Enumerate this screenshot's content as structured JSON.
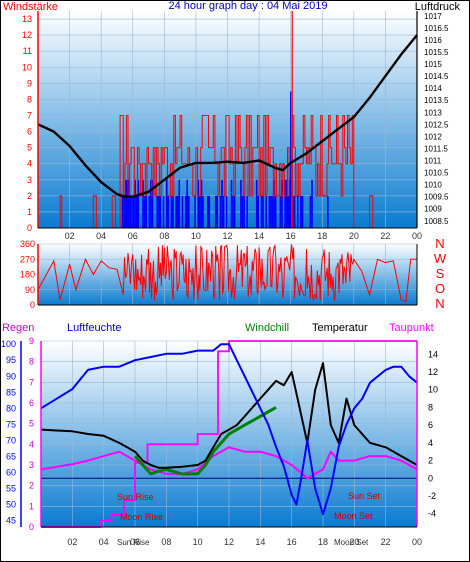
{
  "top": {
    "title": "24 hour graph day : 04 Mai 2019",
    "left_label": "Windstärke",
    "right_label": "Luftdruck"
  },
  "mid": {
    "dir_labels": [
      "N",
      "W",
      "S",
      "O",
      "N"
    ]
  },
  "bottom": {
    "legend": {
      "regen": "Regen",
      "luftfeuchte": "Luftfeuchte",
      "windchill": "Windchill",
      "temperatur": "Temperatur",
      "taupunkt": "Taupunkt"
    },
    "annotations": {
      "sun_rise": "Sun Rise",
      "moon_rise": "Moon Rise",
      "sun_set": "Sun Set",
      "moon_set": "Moon Set",
      "sun_rise_axis": "Sun Rise",
      "moon_set_axis": "Moon Set"
    }
  },
  "colors": {
    "background_top": "#ffffff",
    "background_bottom": "#0a7bd0",
    "wind": "#ff0000",
    "gust": "#0000ff",
    "pressure": "#000000",
    "humidity": "#0000ff",
    "temperature": "#000000",
    "windchill": "#008000",
    "dewpoint": "#ff00ff",
    "rain": "#ff00ff",
    "axis_red": "#ff0000",
    "axis_blue": "#0000ff",
    "legend_magenta": "#cc00cc"
  },
  "chart_data": [
    {
      "id": "wind_pressure",
      "type": "line",
      "title": "24 hour graph day : 04 Mai 2019",
      "x_ticks": [
        "02",
        "04",
        "06",
        "08",
        "10",
        "12",
        "14",
        "16",
        "18",
        "20",
        "22",
        "00"
      ],
      "xlim": [
        0,
        24
      ],
      "y_left_ticks": [
        0,
        1,
        2,
        3,
        4,
        5,
        6,
        7,
        8,
        9,
        10,
        11,
        12,
        13
      ],
      "y_left_lim": [
        0,
        13.5
      ],
      "y_right_ticks": [
        1008.5,
        1009,
        1009.5,
        1010,
        1010.5,
        1011,
        1011.5,
        1012,
        1012.5,
        1013,
        1013.5,
        1014,
        1014.5,
        1015,
        1015.5,
        1016,
        1016.5,
        1017
      ],
      "y_right_lim": [
        1008.2,
        1017.2
      ],
      "series": [
        {
          "name": "Luftdruck",
          "axis": "right",
          "x": [
            0,
            1,
            2,
            3,
            4,
            5,
            5.5,
            6,
            7,
            8,
            9,
            10,
            11,
            12,
            13,
            14,
            15,
            15.5,
            16,
            17,
            18,
            19,
            20,
            21,
            22,
            23,
            24
          ],
          "values": [
            1012.5,
            1012.2,
            1011.6,
            1010.8,
            1010.1,
            1009.6,
            1009.5,
            1009.5,
            1009.7,
            1010.2,
            1010.7,
            1010.9,
            1010.9,
            1010.95,
            1010.9,
            1011.0,
            1010.7,
            1010.6,
            1010.9,
            1011.3,
            1011.8,
            1012.3,
            1012.8,
            1013.6,
            1014.5,
            1015.4,
            1016.2
          ]
        },
        {
          "name": "wind_mean",
          "axis": "left",
          "x": [],
          "values": []
        },
        {
          "name": "wind_gust",
          "axis": "left",
          "x": [],
          "values": []
        }
      ]
    },
    {
      "id": "wind_direction",
      "type": "line",
      "x_ticks": [
        "02",
        "04",
        "06",
        "08",
        "10",
        "12",
        "14",
        "16",
        "18",
        "20",
        "22",
        "00"
      ],
      "xlim": [
        0,
        24
      ],
      "y_ticks": [
        0,
        90,
        180,
        270,
        360
      ],
      "ylim": [
        0,
        360
      ],
      "series": [
        {
          "name": "direction",
          "x": [
            0,
            1,
            1.4,
            2,
            2.4,
            3,
            3.5,
            4,
            4.5,
            5,
            5.4,
            6,
            6.5,
            7,
            7.5,
            8,
            8.5,
            9,
            9.5,
            10,
            10.5,
            11,
            11.5,
            12,
            12.5,
            13,
            13.5,
            14,
            14.5,
            15,
            15.5,
            16,
            16.5,
            17,
            17.5,
            18,
            18.5,
            19,
            19.5,
            20,
            20.5,
            21,
            21.5,
            22,
            22.5,
            23,
            23.3,
            23.6,
            24
          ],
          "values": [
            90,
            260,
            30,
            240,
            90,
            270,
            180,
            260,
            220,
            210,
            60,
            300,
            120,
            330,
            60,
            340,
            80,
            300,
            40,
            350,
            90,
            320,
            30,
            330,
            100,
            300,
            60,
            340,
            120,
            350,
            40,
            300,
            90,
            330,
            60,
            280,
            100,
            250,
            130,
            270,
            200,
            60,
            270,
            250,
            260,
            30,
            20,
            270,
            270
          ]
        }
      ]
    },
    {
      "id": "temp_humidity",
      "type": "line",
      "x_ticks": [
        "02",
        "04",
        "06",
        "08",
        "10",
        "12",
        "14",
        "16",
        "18",
        "20",
        "22",
        "00"
      ],
      "xlim": [
        0,
        24
      ],
      "y_humidity_ticks": [
        45,
        50,
        55,
        60,
        65,
        70,
        75,
        80,
        85,
        90,
        95,
        100
      ],
      "y_humidity_lim": [
        43,
        101
      ],
      "y_rain_ticks": [
        0,
        1,
        2,
        3,
        4,
        5,
        6,
        7,
        8,
        9
      ],
      "y_rain_lim": [
        0,
        9
      ],
      "y_temp_ticks": [
        -4,
        -2,
        0,
        2,
        4,
        6,
        8,
        10,
        12,
        14
      ],
      "y_temp_lim": [
        -5.5,
        15.5
      ],
      "series": [
        {
          "name": "Luftfeuchte",
          "x": [
            0,
            1,
            2,
            3,
            4,
            5,
            6,
            7,
            8,
            9,
            10,
            11,
            11.5,
            12,
            12.5,
            13,
            13.5,
            14,
            14.5,
            15,
            15.5,
            16,
            16.3,
            16.6,
            17,
            17.5,
            18,
            18.5,
            19,
            19.5,
            20,
            20.5,
            21,
            21.5,
            22,
            22.5,
            23,
            23.5,
            24
          ],
          "values": [
            80,
            83,
            86,
            92,
            93,
            93,
            95,
            96,
            97,
            97,
            98,
            98,
            100,
            100,
            95,
            90,
            85,
            80,
            75,
            68,
            62,
            53,
            50,
            58,
            70,
            55,
            47,
            55,
            68,
            75,
            80,
            83,
            88,
            90,
            92,
            93,
            93,
            90,
            88
          ]
        },
        {
          "name": "Temperatur",
          "x": [
            0,
            1,
            2,
            3,
            4,
            5,
            6,
            6.5,
            7,
            7.5,
            8,
            9,
            10,
            10.5,
            11,
            11.5,
            12,
            12.5,
            13,
            13.5,
            14,
            14.5,
            15,
            15.5,
            16,
            16.5,
            17,
            17.5,
            18,
            18.5,
            19,
            19.5,
            20,
            21,
            22,
            23,
            24
          ],
          "values": [
            5.5,
            5.4,
            5.3,
            5.0,
            4.8,
            4.0,
            3.0,
            2.0,
            1.5,
            1.2,
            1.2,
            1.3,
            1.5,
            2.0,
            3.5,
            5.0,
            5.5,
            6.0,
            7.0,
            8.0,
            9.0,
            10.0,
            11.0,
            10.5,
            12.0,
            8.0,
            4.0,
            10.0,
            13.0,
            6.0,
            4.0,
            9.0,
            6.0,
            4.0,
            3.5,
            2.5,
            1.5
          ]
        },
        {
          "name": "Windchill",
          "x": [
            6,
            6.5,
            7,
            7.5,
            8,
            9,
            10,
            10.5,
            11,
            11.5,
            12,
            12.5,
            13,
            14,
            15
          ],
          "values": [
            2.5,
            1.5,
            0.5,
            0.8,
            1.0,
            0.5,
            0.5,
            1.5,
            3.0,
            4.0,
            5.0,
            5.5,
            6.0,
            7.0,
            8.0
          ]
        },
        {
          "name": "Taupunkt",
          "x": [
            0,
            1,
            2,
            3,
            4,
            5,
            6,
            7,
            8,
            9,
            10,
            11,
            12,
            13,
            14,
            15,
            16,
            17,
            18,
            18.5,
            19,
            20,
            21,
            22,
            23,
            24
          ],
          "values": [
            1.0,
            1.3,
            1.6,
            2.0,
            2.5,
            3.0,
            2.0,
            1.0,
            0.5,
            0.5,
            1.0,
            2.5,
            3.5,
            3.0,
            3.0,
            2.5,
            1.5,
            0.0,
            1.0,
            3.0,
            2.0,
            2.0,
            2.5,
            2.5,
            2.0,
            1.0
          ]
        },
        {
          "name": "Regen",
          "x": [
            0,
            3.8,
            3.8,
            4.5,
            4.5,
            5.3,
            5.3,
            6.0,
            6.0,
            6.8,
            6.8,
            10.0,
            10.0,
            11.3,
            11.3,
            12.0,
            12.0,
            24
          ],
          "values": [
            0,
            0,
            0.3,
            0.3,
            0.6,
            0.6,
            1.3,
            1.3,
            3.1,
            3.1,
            4.0,
            4.0,
            4.5,
            4.5,
            8.5,
            8.5,
            9.0,
            9.0
          ]
        }
      ]
    }
  ]
}
